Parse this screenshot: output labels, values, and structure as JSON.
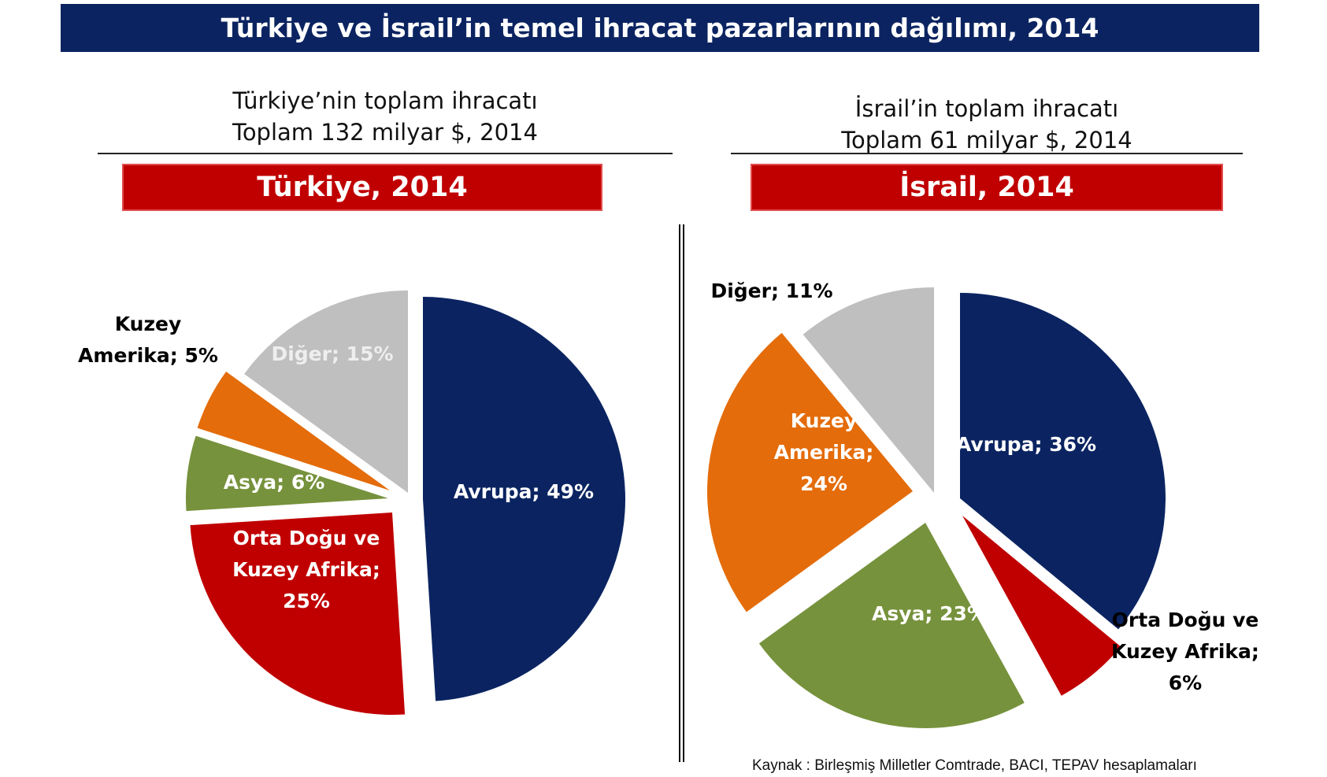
{
  "title": "Türkiye ve İsrail’in temel ihracat pazarlarının dağılımı, 2014",
  "source": "Kaynak : Birleşmiş Milletler Comtrade, BACI, TEPAV hesaplamaları",
  "colors": {
    "Avrupa": "#0b2461",
    "Orta Doğu ve Kuzey Afrika": "#c00000",
    "Asya": "#76923c",
    "Kuzey Amerika": "#e46c0a",
    "Diğer": "#bfbfbf"
  },
  "chart_data": [
    {
      "type": "pie",
      "subtitle_line1": "Türkiye’nin toplam ihracatı",
      "subtitle_line2": "Toplam 132 milyar $, 2014",
      "title": "Türkiye, 2014",
      "slices": [
        {
          "category": "Avrupa",
          "value": 49,
          "label_lines": [
            "Avrupa; 49%"
          ]
        },
        {
          "category": "Orta Doğu ve Kuzey Afrika",
          "value": 25,
          "label_lines": [
            "Orta Doğu ve",
            "Kuzey Afrika;",
            "25%"
          ]
        },
        {
          "category": "Asya",
          "value": 6,
          "label_lines": [
            "Asya; 6%"
          ]
        },
        {
          "category": "Kuzey Amerika",
          "value": 5,
          "label_lines": [
            "Kuzey",
            "Amerika; 5%"
          ]
        },
        {
          "category": "Diğer",
          "value": 15,
          "label_lines": [
            "Diğer; 15%"
          ]
        }
      ]
    },
    {
      "type": "pie",
      "subtitle_line1": "İsrail’in toplam ihracatı",
      "subtitle_line2": "Toplam 61 milyar $, 2014",
      "title": "İsrail, 2014",
      "slices": [
        {
          "category": "Avrupa",
          "value": 36,
          "label_lines": [
            "Avrupa; 36%"
          ]
        },
        {
          "category": "Orta Doğu ve Kuzey Afrika",
          "value": 6,
          "label_lines": [
            "Orta Doğu ve",
            "Kuzey Afrika;",
            "6%"
          ]
        },
        {
          "category": "Asya",
          "value": 23,
          "label_lines": [
            "Asya; 23%"
          ]
        },
        {
          "category": "Kuzey Amerika",
          "value": 24,
          "label_lines": [
            "Kuzey",
            "Amerika;",
            "24%"
          ]
        },
        {
          "category": "Diğer",
          "value": 11,
          "label_lines": [
            "Diğer; 11%"
          ]
        }
      ]
    }
  ]
}
